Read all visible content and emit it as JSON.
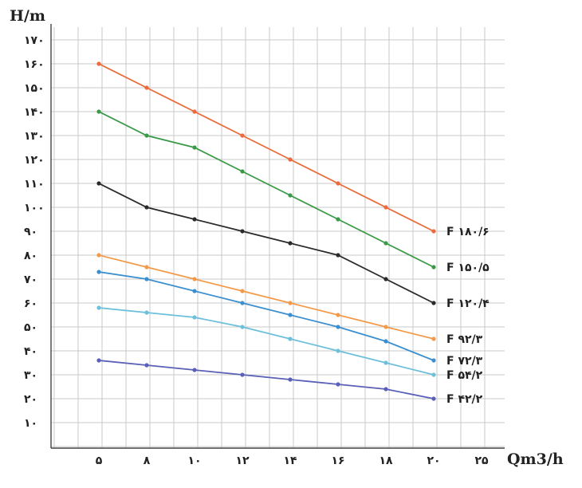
{
  "chart_data": {
    "type": "line",
    "xlabel": "Qm3/h",
    "ylabel": "H/m",
    "x_tick_labels": [
      "۵",
      "۸",
      "۱۰",
      "۱۲",
      "۱۴",
      "۱۶",
      "۱۸",
      "۲۰",
      "۲۵"
    ],
    "y_ticks": [
      10,
      20,
      30,
      40,
      50,
      60,
      70,
      80,
      90,
      100,
      110,
      120,
      130,
      140,
      150,
      160,
      170
    ],
    "y_tick_labels": [
      "۱۰",
      "۲۰",
      "۳۰",
      "۴۰",
      "۵۰",
      "۶۰",
      "۷۰",
      "۸۰",
      "۹۰",
      "۱۰۰",
      "۱۱۰",
      "۱۲۰",
      "۱۳۰",
      "۱۴۰",
      "۱۵۰",
      "۱۶۰",
      "۱۷۰"
    ],
    "ylim": [
      0,
      175
    ],
    "grid": true,
    "series": [
      {
        "name": "F ۱۸۰/۶",
        "color": "#ef6a3a",
        "values": [
          160,
          150,
          140,
          130,
          120,
          110,
          100,
          90
        ]
      },
      {
        "name": "F ۱۵۰/۵",
        "color": "#3a9a48",
        "values": [
          140,
          130,
          125,
          115,
          105,
          95,
          85,
          75
        ]
      },
      {
        "name": "F ۱۲۰/۴",
        "color": "#2a2a2a",
        "values": [
          110,
          100,
          95,
          90,
          85,
          80,
          70,
          60
        ]
      },
      {
        "name": "F ۹۲/۳",
        "color": "#f39a4a",
        "values": [
          80,
          75,
          70,
          65,
          60,
          55,
          50,
          45
        ]
      },
      {
        "name": "F ۷۲/۳",
        "color": "#3a8fd0",
        "values": [
          73,
          70,
          65,
          60,
          55,
          50,
          44,
          36
        ]
      },
      {
        "name": "F ۵۴/۲",
        "color": "#6cc0dc",
        "values": [
          58,
          56,
          54,
          50,
          45,
          40,
          35,
          30
        ]
      },
      {
        "name": "F ۴۲/۲",
        "color": "#5a5fb8",
        "values": [
          36,
          34,
          32,
          30,
          28,
          26,
          24,
          20
        ]
      }
    ]
  }
}
